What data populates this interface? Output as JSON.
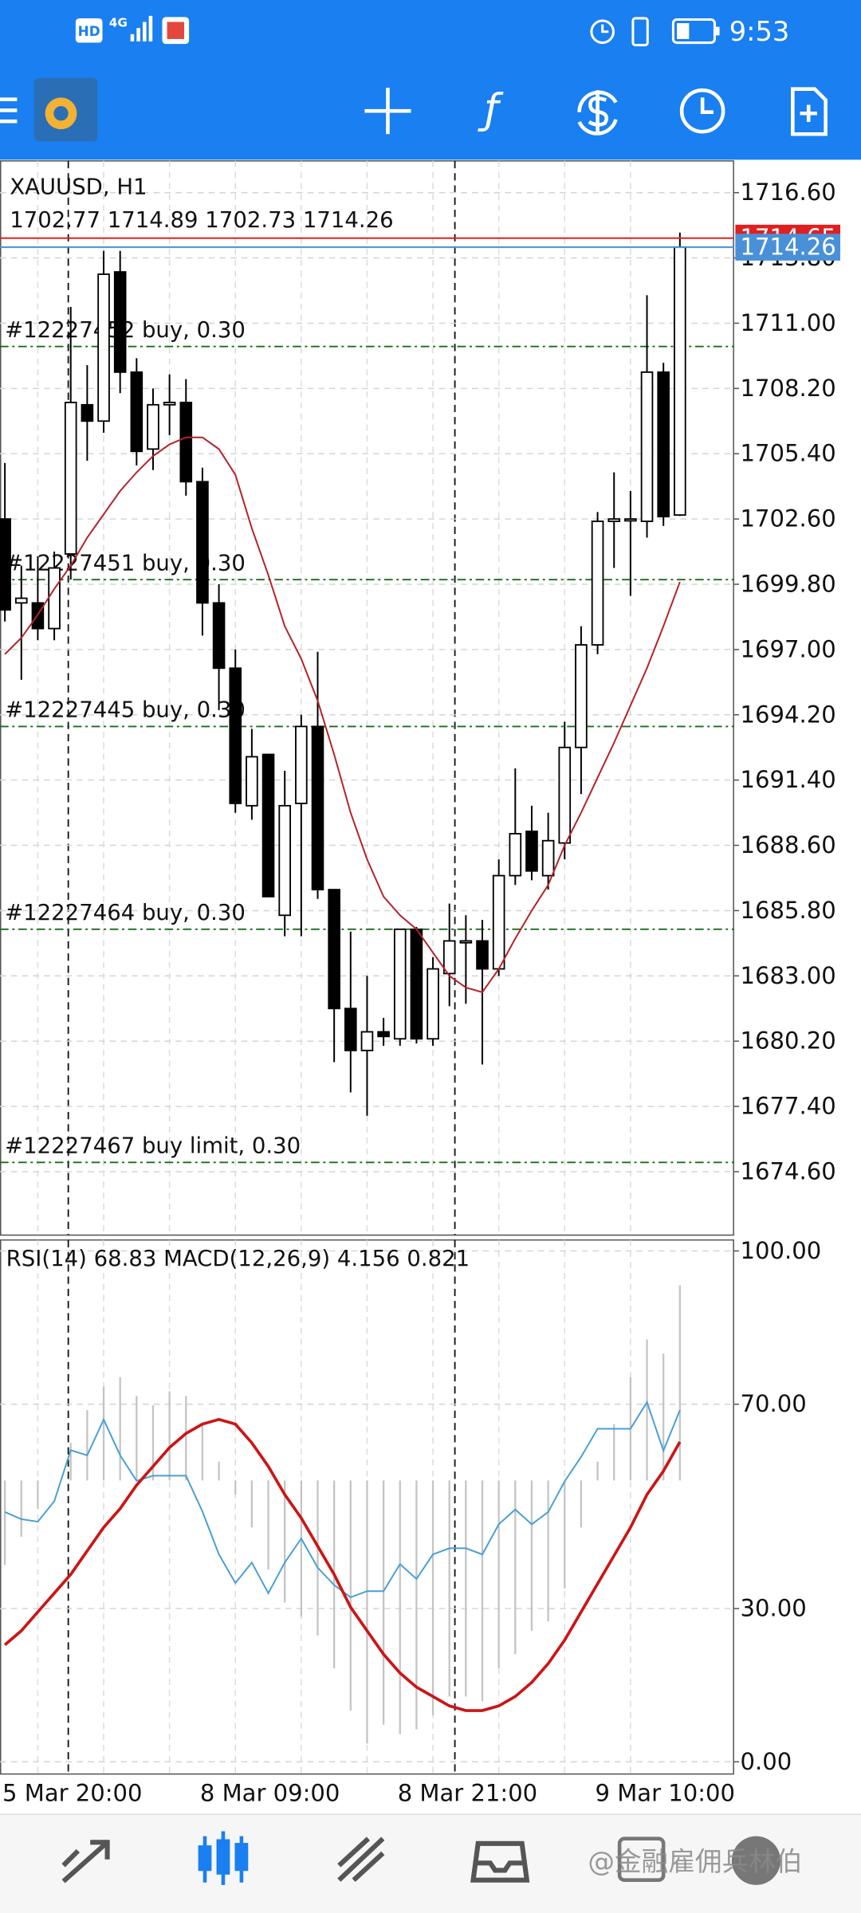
{
  "status_bar": {
    "hd": "HD",
    "network": "4G",
    "time": "9:53"
  },
  "watermark": "@金融雇佣兵林伯",
  "chart_data": [
    {
      "type": "candlestick",
      "title": "XAUUSD, H1",
      "subtitle": "1702.77 1714.89 1702.73 1714.26",
      "categories": [
        "5 Mar 20:00",
        null,
        null,
        null,
        null,
        null,
        null,
        null,
        null,
        null,
        null,
        null,
        "8 Mar 09:00",
        null,
        null,
        null,
        null,
        null,
        null,
        null,
        null,
        null,
        null,
        null,
        "8 Mar 21:00",
        null,
        null,
        null,
        null,
        null,
        null,
        null,
        null,
        null,
        null,
        null,
        "9 Mar 10:00",
        null,
        null,
        null,
        null,
        null
      ],
      "open": [
        1702.6,
        1699.0,
        1699.0,
        1697.9,
        1701.1,
        1707.5,
        1706.8,
        1713.2,
        1708.9,
        1705.6,
        1707.5,
        1707.6,
        1704.2,
        1699.0,
        1696.2,
        1690.3,
        1692.5,
        1685.6,
        1690.4,
        1693.7,
        1686.7,
        1681.6,
        1679.8,
        1680.6,
        1680.3,
        1685.0,
        1680.3,
        1683.1,
        1684.5,
        1684.5,
        1683.3,
        1687.3,
        1689.2,
        1687.3,
        1688.7,
        1692.8,
        1697.2,
        1702.5,
        1702.6,
        1702.5,
        1708.9,
        1702.77
      ],
      "high": [
        1705.0,
        1700.6,
        1701.0,
        1701.2,
        1711.7,
        1709.2,
        1714.1,
        1714.1,
        1709.5,
        1708.2,
        1708.8,
        1708.6,
        1704.8,
        1699.8,
        1697.0,
        1693.6,
        1692.5,
        1691.8,
        1694.2,
        1696.9,
        1686.7,
        1684.9,
        1683.0,
        1681.2,
        1685.0,
        1685.1,
        1683.8,
        1686.1,
        1685.6,
        1685.4,
        1688.0,
        1691.9,
        1690.3,
        1690.0,
        1693.9,
        1698.0,
        1702.9,
        1704.6,
        1703.8,
        1712.2,
        1709.3,
        1714.89
      ],
      "low": [
        1698.2,
        1695.7,
        1697.4,
        1697.4,
        1700.0,
        1705.1,
        1706.3,
        1708.0,
        1704.9,
        1704.7,
        1706.2,
        1703.6,
        1697.6,
        1694.4,
        1690.0,
        1689.7,
        1686.4,
        1684.7,
        1684.7,
        1686.3,
        1679.3,
        1678.0,
        1677.0,
        1680.0,
        1680.0,
        1680.1,
        1680.0,
        1681.7,
        1681.8,
        1679.2,
        1683.0,
        1686.9,
        1687.1,
        1686.7,
        1688.0,
        1690.8,
        1696.8,
        1700.5,
        1699.3,
        1701.8,
        1702.3,
        1702.73
      ],
      "close": [
        1698.7,
        1699.2,
        1697.9,
        1700.5,
        1707.6,
        1706.8,
        1713.1,
        1708.9,
        1705.5,
        1707.5,
        1707.6,
        1704.2,
        1699.0,
        1696.2,
        1690.4,
        1692.4,
        1686.4,
        1690.3,
        1693.7,
        1686.7,
        1681.6,
        1679.8,
        1680.6,
        1680.4,
        1685.0,
        1680.3,
        1683.3,
        1684.5,
        1684.5,
        1683.3,
        1687.3,
        1689.1,
        1687.5,
        1688.8,
        1692.8,
        1697.2,
        1702.5,
        1702.6,
        1702.6,
        1708.9,
        1702.7,
        1714.26
      ],
      "up_color": "#ffffff",
      "down_color": "#000000",
      "ma": {
        "color": "#b3232a",
        "values": [
          1696.8,
          1697.5,
          1698.5,
          1699.6,
          1700.6,
          1701.8,
          1702.8,
          1703.8,
          1704.6,
          1705.3,
          1705.8,
          1706.1,
          1706.1,
          1705.6,
          1704.5,
          1702.2,
          1700.2,
          1698.0,
          1696.6,
          1694.8,
          1692.5,
          1690.0,
          1688.0,
          1686.4,
          1685.6,
          1685.0,
          1684.0,
          1683.0,
          1682.5,
          1682.3,
          1683.3,
          1684.6,
          1685.8,
          1686.9,
          1688.6,
          1690.0,
          1691.5,
          1693.0,
          1694.6,
          1696.2,
          1698.0,
          1699.9
        ]
      },
      "ylim": [
        1671.88,
        1717.96
      ],
      "yticks": [
        {
          "value": 1716.6,
          "label": "1716.60"
        },
        {
          "value": 1713.8,
          "label": "1713.80"
        },
        {
          "value": 1711.0,
          "label": "1711.00"
        },
        {
          "value": 1708.2,
          "label": "1708.20"
        },
        {
          "value": 1705.4,
          "label": "1705.40"
        },
        {
          "value": 1702.6,
          "label": "1702.60"
        },
        {
          "value": 1699.8,
          "label": "1699.80"
        },
        {
          "value": 1697.0,
          "label": "1697.00"
        },
        {
          "value": 1694.2,
          "label": "1694.20"
        },
        {
          "value": 1691.4,
          "label": "1691.40"
        },
        {
          "value": 1688.6,
          "label": "1688.60"
        },
        {
          "value": 1685.8,
          "label": "1685.80"
        },
        {
          "value": 1683.0,
          "label": "1683.00"
        },
        {
          "value": 1680.2,
          "label": "1680.20"
        },
        {
          "value": 1677.4,
          "label": "1677.40"
        },
        {
          "value": 1674.6,
          "label": "1674.60"
        }
      ],
      "grid": true,
      "ask": {
        "value": 1714.65,
        "color": "#e02020"
      },
      "bid": {
        "value": 1714.26,
        "color": "#4a90d9"
      },
      "order_color": "#1e6b1e",
      "orders": [
        {
          "label": "#12227452 buy, 0.30",
          "price": 1710.0
        },
        {
          "label": "#12227451 buy, 0.30",
          "price": 1700.0
        },
        {
          "label": "#12227445 buy, 0.30",
          "price": 1693.7
        },
        {
          "label": "#12227464 buy, 0.30",
          "price": 1685.0
        },
        {
          "label": "#12227467 buy limit, 0.30",
          "price": 1675.0
        }
      ]
    },
    {
      "type": "indicator",
      "title": "RSI(14) 68.83 MACD(12,26,9) 4.156 0.821",
      "ylim": [
        -2.39,
        102.15
      ],
      "yticks": [
        {
          "value": 100,
          "label": "100.00"
        },
        {
          "value": 70,
          "label": "70.00"
        },
        {
          "value": 30,
          "label": "30.00"
        },
        {
          "value": 0,
          "label": "0.00"
        }
      ],
      "y2lim": [
        -6.25,
        5.12
      ],
      "grid": true,
      "histogram": {
        "color": "#c4c4c4",
        "axis": "y2",
        "values": [
          -1.8,
          -1.2,
          -0.6,
          0.0,
          0.8,
          1.5,
          2.0,
          2.2,
          1.8,
          1.6,
          1.9,
          1.8,
          1.2,
          0.4,
          -0.3,
          -1.0,
          -1.9,
          -2.6,
          -2.9,
          -3.3,
          -4.0,
          -4.9,
          -5.6,
          -5.2,
          -5.4,
          -5.3,
          -5.0,
          -4.6,
          -4.6,
          -4.7,
          -4.0,
          -3.7,
          -3.2,
          -3.0,
          -2.3,
          -1.0,
          0.4,
          1.2,
          2.2,
          3.0,
          2.7,
          4.156
        ]
      },
      "series": [
        {
          "color": "#4a9fd4",
          "values": [
            48.9,
            47.5,
            47.0,
            51.0,
            61.0,
            60.0,
            67.0,
            60.0,
            55.0,
            56.0,
            56.0,
            56.0,
            49.0,
            40.6,
            35.0,
            39.0,
            33.0,
            39.0,
            43.7,
            38.0,
            34.6,
            32.2,
            33.4,
            33.4,
            38.7,
            35.8,
            40.6,
            41.8,
            41.8,
            40.6,
            46.5,
            49.4,
            46.5,
            48.9,
            54.9,
            59.7,
            65.2,
            65.2,
            65.2,
            70.4,
            60.9,
            68.83
          ]
        },
        {
          "color": "#cc1515",
          "axis": "y2",
          "values": [
            -3.5,
            -3.2,
            -2.8,
            -2.4,
            -2.0,
            -1.5,
            -1.0,
            -0.6,
            -0.1,
            0.3,
            0.7,
            1.0,
            1.2,
            1.3,
            1.2,
            0.8,
            0.3,
            -0.3,
            -0.8,
            -1.4,
            -2.0,
            -2.7,
            -3.2,
            -3.7,
            -4.1,
            -4.4,
            -4.6,
            -4.8,
            -4.9,
            -4.9,
            -4.8,
            -4.6,
            -4.3,
            -3.9,
            -3.4,
            -2.8,
            -2.2,
            -1.6,
            -1.0,
            -0.3,
            0.2,
            0.821
          ]
        }
      ]
    }
  ]
}
